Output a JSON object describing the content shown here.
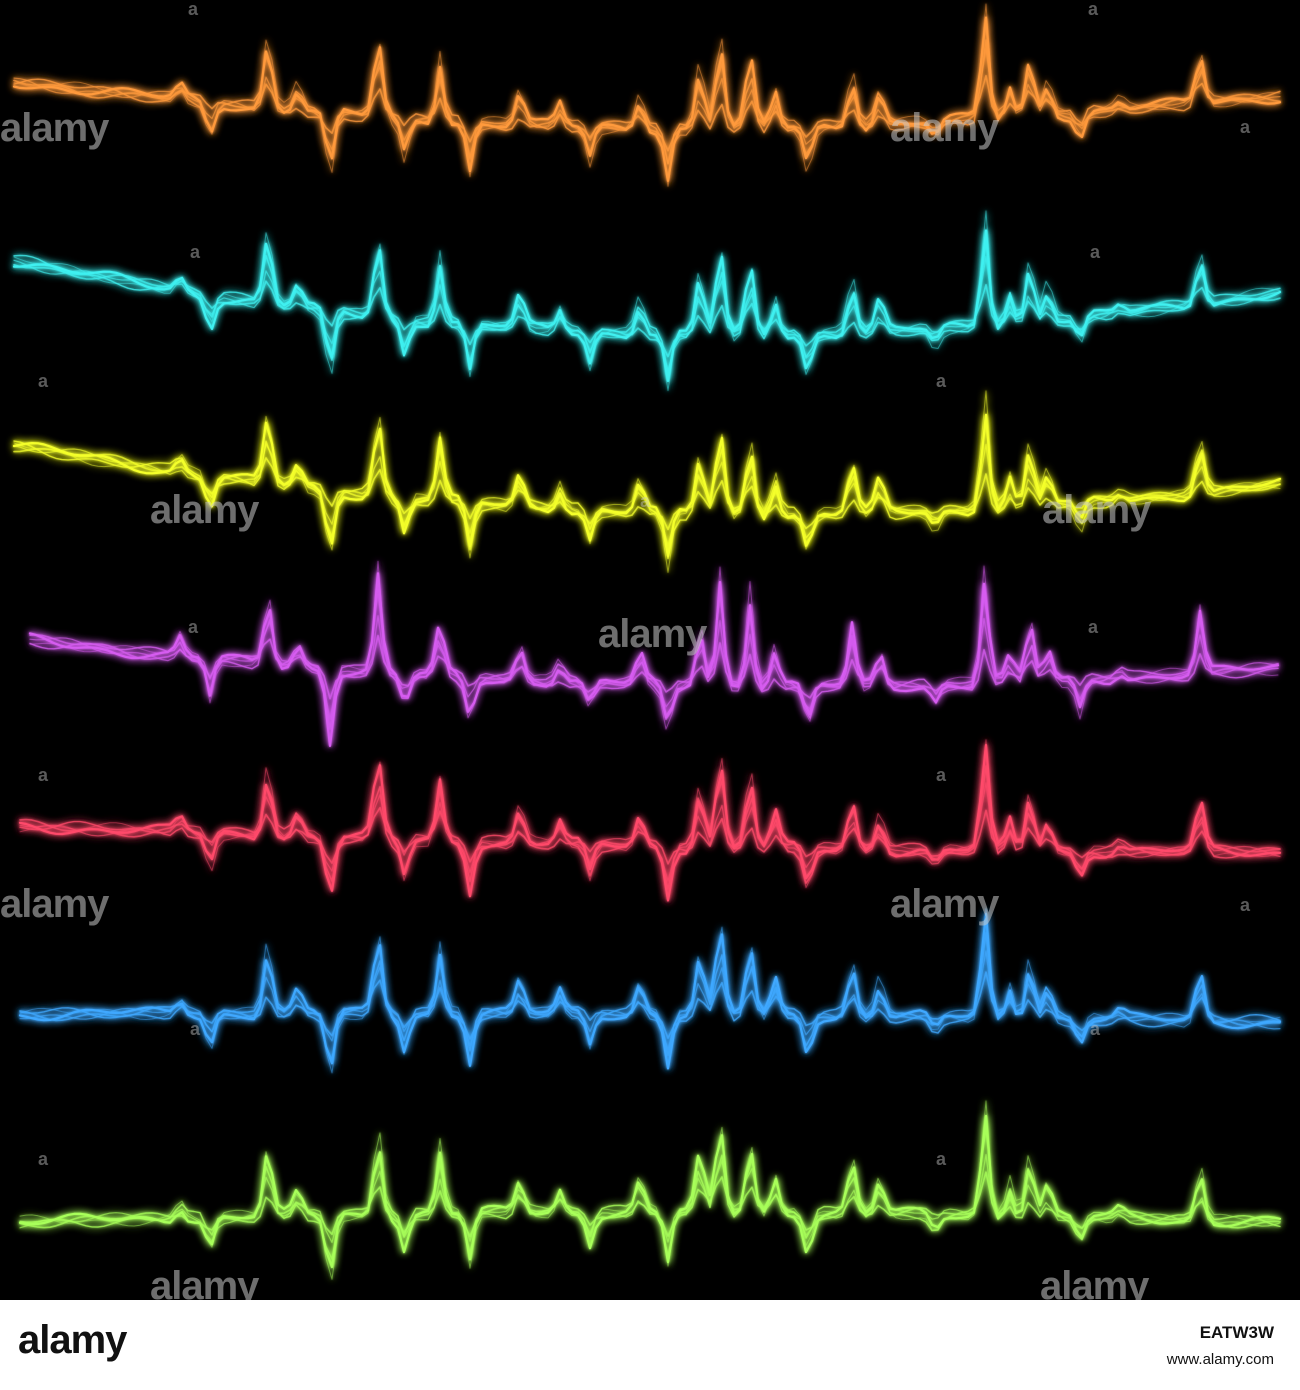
{
  "image": {
    "subject": "neon electric waveforms",
    "background_color": "#000000",
    "waves": [
      {
        "name": "orange-wave",
        "color": "#ff9a3c"
      },
      {
        "name": "cyan-wave",
        "color": "#3ff0f0"
      },
      {
        "name": "yellow-wave",
        "color": "#f4ff2a"
      },
      {
        "name": "magenta-wave",
        "color": "#d65cf0"
      },
      {
        "name": "red-wave",
        "color": "#ff4a6a"
      },
      {
        "name": "blue-wave",
        "color": "#3fa8ff"
      },
      {
        "name": "green-wave",
        "color": "#a8ff5a"
      }
    ]
  },
  "watermark": {
    "text": "alamy",
    "symbol": "a"
  },
  "footer": {
    "logo": "alamy",
    "image_id": "EATW3W",
    "url": "www.alamy.com"
  }
}
